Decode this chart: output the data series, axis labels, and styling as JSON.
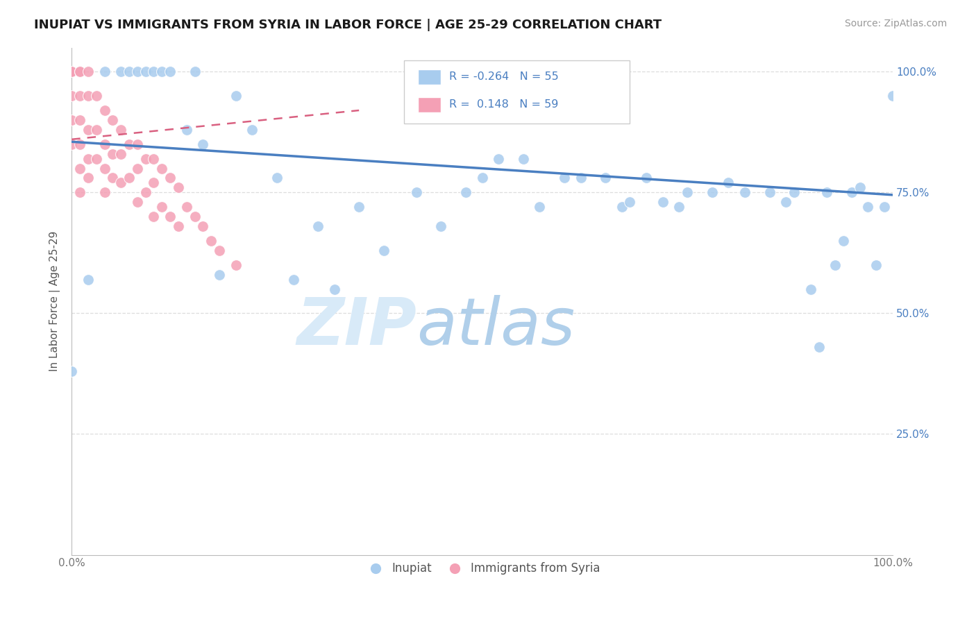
{
  "title": "INUPIAT VS IMMIGRANTS FROM SYRIA IN LABOR FORCE | AGE 25-29 CORRELATION CHART",
  "source": "Source: ZipAtlas.com",
  "ylabel": "In Labor Force | Age 25-29",
  "xlim": [
    0.0,
    1.0
  ],
  "ylim": [
    0.0,
    1.05
  ],
  "ytick_positions": [
    0.25,
    0.5,
    0.75,
    1.0
  ],
  "ytick_labels": [
    "25.0%",
    "50.0%",
    "75.0%",
    "100.0%"
  ],
  "legend_r_blue": "-0.264",
  "legend_n_blue": "55",
  "legend_r_pink": "0.148",
  "legend_n_pink": "59",
  "blue_color": "#A8CCEE",
  "pink_color": "#F4A0B5",
  "trendline_blue_color": "#4A7FC1",
  "trendline_pink_color": "#D96080",
  "background_color": "#FFFFFF",
  "grid_color": "#DDDDDD",
  "blue_scatter_x": [
    0.0,
    0.02,
    0.04,
    0.06,
    0.07,
    0.08,
    0.09,
    0.1,
    0.11,
    0.12,
    0.14,
    0.15,
    0.16,
    0.18,
    0.2,
    0.22,
    0.25,
    0.27,
    0.3,
    0.32,
    0.35,
    0.38,
    0.42,
    0.45,
    0.48,
    0.5,
    0.52,
    0.55,
    0.57,
    0.6,
    0.62,
    0.65,
    0.67,
    0.68,
    0.7,
    0.72,
    0.74,
    0.75,
    0.78,
    0.8,
    0.82,
    0.85,
    0.87,
    0.88,
    0.9,
    0.91,
    0.92,
    0.93,
    0.94,
    0.95,
    0.96,
    0.97,
    0.98,
    0.99,
    1.0
  ],
  "blue_scatter_y": [
    0.38,
    0.57,
    1.0,
    1.0,
    1.0,
    1.0,
    1.0,
    1.0,
    1.0,
    1.0,
    0.88,
    1.0,
    0.85,
    0.58,
    0.95,
    0.88,
    0.78,
    0.57,
    0.68,
    0.55,
    0.72,
    0.63,
    0.75,
    0.68,
    0.75,
    0.78,
    0.82,
    0.82,
    0.72,
    0.78,
    0.78,
    0.78,
    0.72,
    0.73,
    0.78,
    0.73,
    0.72,
    0.75,
    0.75,
    0.77,
    0.75,
    0.75,
    0.73,
    0.75,
    0.55,
    0.43,
    0.75,
    0.6,
    0.65,
    0.75,
    0.76,
    0.72,
    0.6,
    0.72,
    0.95
  ],
  "pink_scatter_x": [
    0.0,
    0.0,
    0.0,
    0.0,
    0.0,
    0.0,
    0.0,
    0.0,
    0.0,
    0.0,
    0.0,
    0.0,
    0.01,
    0.01,
    0.01,
    0.01,
    0.01,
    0.01,
    0.01,
    0.02,
    0.02,
    0.02,
    0.02,
    0.02,
    0.03,
    0.03,
    0.03,
    0.04,
    0.04,
    0.04,
    0.04,
    0.05,
    0.05,
    0.05,
    0.06,
    0.06,
    0.06,
    0.07,
    0.07,
    0.08,
    0.08,
    0.08,
    0.09,
    0.09,
    0.1,
    0.1,
    0.1,
    0.11,
    0.11,
    0.12,
    0.12,
    0.13,
    0.13,
    0.14,
    0.15,
    0.16,
    0.17,
    0.18,
    0.2
  ],
  "pink_scatter_y": [
    1.0,
    1.0,
    1.0,
    1.0,
    1.0,
    1.0,
    1.0,
    1.0,
    1.0,
    0.95,
    0.9,
    0.85,
    1.0,
    1.0,
    0.95,
    0.9,
    0.85,
    0.8,
    0.75,
    1.0,
    0.95,
    0.88,
    0.82,
    0.78,
    0.95,
    0.88,
    0.82,
    0.92,
    0.85,
    0.8,
    0.75,
    0.9,
    0.83,
    0.78,
    0.88,
    0.83,
    0.77,
    0.85,
    0.78,
    0.85,
    0.8,
    0.73,
    0.82,
    0.75,
    0.82,
    0.77,
    0.7,
    0.8,
    0.72,
    0.78,
    0.7,
    0.76,
    0.68,
    0.72,
    0.7,
    0.68,
    0.65,
    0.63,
    0.6
  ],
  "blue_trendline_x0": 0.0,
  "blue_trendline_y0": 0.855,
  "blue_trendline_x1": 1.0,
  "blue_trendline_y1": 0.745,
  "pink_trendline_x0": 0.0,
  "pink_trendline_y0": 0.86,
  "pink_trendline_x1": 0.35,
  "pink_trendline_y1": 0.92
}
